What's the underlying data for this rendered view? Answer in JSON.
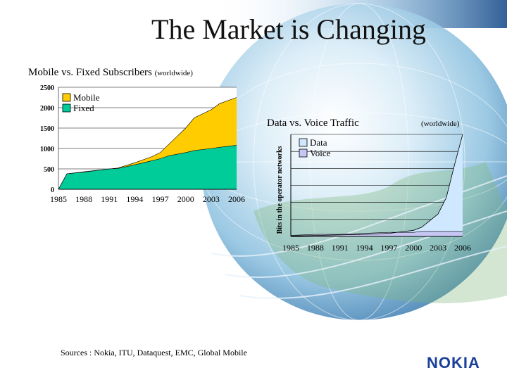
{
  "slide": {
    "title": "The Market is Changing",
    "subtitle_subscribers": "Mobile vs. Fixed Subscribers",
    "subtitle_subscribers_scope": "(worldwide)",
    "subtitle_traffic": "Data vs. Voice Traffic",
    "subtitle_traffic_scope": "(worldwide)",
    "sources": "Sources : Nokia, ITU, Dataquest, EMC, Global Mobile",
    "logo_text": "NOKIA"
  },
  "colors": {
    "mobile": "#ffcc00",
    "fixed": "#00cc99",
    "data": "#cfe8ff",
    "voice": "#c6c6f2",
    "logo": "#1b3f9a"
  },
  "chart_data": [
    {
      "type": "area",
      "title": "Mobile vs. Fixed Subscribers",
      "xlabel": "",
      "ylabel": "",
      "x": [
        1985,
        1986,
        1988,
        1991,
        1992,
        1994,
        1996,
        1997,
        1998,
        2000,
        2001,
        2003,
        2004,
        2006
      ],
      "x_tick_labels": [
        "1985",
        "1988",
        "1991",
        "1994",
        "1997",
        "2000",
        "2003",
        "2006"
      ],
      "y_tick_labels": [
        "2500",
        "2000",
        "1500",
        "1000",
        "500",
        "0"
      ],
      "ylim": [
        0,
        2500
      ],
      "legend": [
        "Mobile",
        "Fixed"
      ],
      "legend_position": "top-left",
      "series": [
        {
          "name": "Fixed",
          "values": [
            0,
            380,
            420,
            500,
            510,
            600,
            700,
            750,
            820,
            900,
            950,
            1000,
            1030,
            1080
          ]
        },
        {
          "name": "Mobile",
          "values": [
            0,
            380,
            430,
            500,
            520,
            650,
            800,
            900,
            1100,
            1500,
            1750,
            1950,
            2100,
            2250
          ]
        }
      ]
    },
    {
      "type": "area",
      "title": "Data vs. Voice Traffic",
      "xlabel": "",
      "ylabel": "Bits in the operator networks",
      "x": [
        1985,
        1988,
        1991,
        1994,
        1997,
        2000,
        2001,
        2003,
        2004,
        2005,
        2006
      ],
      "x_tick_labels": [
        "1985",
        "1988",
        "1991",
        "1994",
        "1997",
        "2000",
        "2003",
        "2006"
      ],
      "y_tick_labels": [],
      "ylim": [
        0,
        100
      ],
      "legend": [
        "Data",
        "Voice"
      ],
      "legend_position": "top-left",
      "series": [
        {
          "name": "Voice",
          "values": [
            1,
            2,
            2,
            3,
            4,
            4,
            5,
            5,
            5,
            5,
            5
          ]
        },
        {
          "name": "Data",
          "values": [
            0.5,
            1,
            1.5,
            2,
            3,
            6,
            9,
            22,
            38,
            70,
            100
          ]
        }
      ]
    }
  ]
}
